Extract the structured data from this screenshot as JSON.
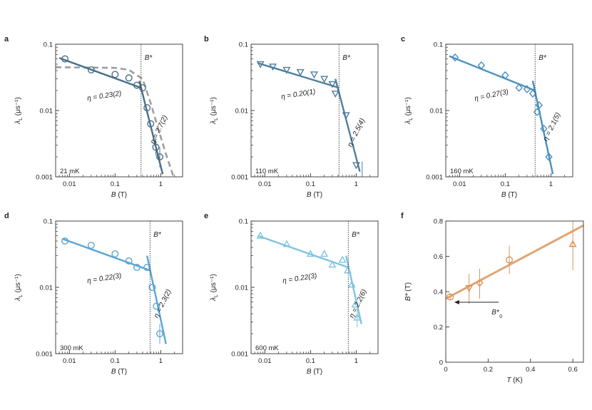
{
  "figure": {
    "panel_letters": [
      "a",
      "b",
      "c",
      "d",
      "e",
      "f"
    ]
  },
  "colors": {
    "a": "#4a6f88",
    "b": "#4f7e9c",
    "c": "#4a90bf",
    "d": "#5aa6d2",
    "e": "#7fc3df",
    "f": "#d9955a",
    "fit_dash": "#9e9e9e",
    "axis": "#333333"
  },
  "chart_data": [
    {
      "panel": "a",
      "type": "scatter",
      "marker": "circle",
      "temperature": "21 mK",
      "xlabel_var": "B",
      "xlabel_unit": " (T)",
      "ylabel_var": "λ",
      "ylabel_sub": "L",
      "ylabel_unit": " (μs⁻¹)",
      "xscale": "log",
      "yscale": "log",
      "xlim": [
        0.005,
        3
      ],
      "ylim": [
        0.001,
        0.1
      ],
      "xticks": [
        0.01,
        0.1,
        1
      ],
      "xtick_labels": [
        "0.01",
        "0.1",
        "1"
      ],
      "yticks": [
        0.001,
        0.01,
        0.1
      ],
      "ytick_labels": [
        "0.001",
        "0.01",
        "0.1"
      ],
      "bstar_label": "B*",
      "bstar_value": 0.37,
      "points": [
        {
          "x": 0.008,
          "y": 0.06
        },
        {
          "x": 0.03,
          "y": 0.041
        },
        {
          "x": 0.1,
          "y": 0.035
        },
        {
          "x": 0.2,
          "y": 0.031
        },
        {
          "x": 0.3,
          "y": 0.024
        },
        {
          "x": 0.4,
          "y": 0.022
        },
        {
          "x": 0.5,
          "y": 0.011
        },
        {
          "x": 0.6,
          "y": 0.0063
        },
        {
          "x": 0.78,
          "y": 0.0028,
          "err": [
            0.0021,
            0.0038
          ]
        },
        {
          "x": 0.95,
          "y": 0.002,
          "err": [
            0.0014,
            0.0028
          ]
        }
      ],
      "fit_low": {
        "x": [
          0.006,
          0.37
        ],
        "y": [
          0.062,
          0.022
        ]
      },
      "fit_high": {
        "x": [
          0.34,
          1.1
        ],
        "y": [
          0.028,
          0.0011
        ]
      },
      "dashed": {
        "x": [
          0.005,
          0.1,
          0.2,
          0.4,
          0.6,
          0.9,
          1.3,
          2.0
        ],
        "y": [
          0.045,
          0.044,
          0.041,
          0.03,
          0.013,
          0.005,
          0.0022,
          0.0009
        ]
      },
      "ann_low": {
        "text": "η = 0.23(2)",
        "x": 0.14,
        "y": 0.017,
        "rot": -9
      },
      "ann_high": {
        "text": "η = 2.7(2)",
        "x": 1.0,
        "y": 0.005,
        "rot": -64
      }
    },
    {
      "panel": "b",
      "type": "scatter",
      "marker": "triangle-down",
      "temperature": "110 mK",
      "xlabel_var": "B",
      "xlabel_unit": " (T)",
      "ylabel_var": "λ",
      "ylabel_sub": "L",
      "ylabel_unit": " (μs⁻¹)",
      "xscale": "log",
      "yscale": "log",
      "xlim": [
        0.005,
        3
      ],
      "ylim": [
        0.001,
        0.1
      ],
      "xticks": [
        0.01,
        0.1,
        1
      ],
      "xtick_labels": [
        "0.01",
        "0.1",
        "1"
      ],
      "yticks": [
        0.001,
        0.01,
        0.1
      ],
      "ytick_labels": [
        "0.001",
        "0.01",
        "0.1"
      ],
      "bstar_label": "B*",
      "bstar_value": 0.42,
      "points": [
        {
          "x": 0.008,
          "y": 0.05
        },
        {
          "x": 0.015,
          "y": 0.046
        },
        {
          "x": 0.03,
          "y": 0.041
        },
        {
          "x": 0.06,
          "y": 0.038
        },
        {
          "x": 0.12,
          "y": 0.035
        },
        {
          "x": 0.2,
          "y": 0.03
        },
        {
          "x": 0.3,
          "y": 0.025
        },
        {
          "x": 0.35,
          "y": 0.018
        },
        {
          "x": 0.6,
          "y": 0.0085
        },
        {
          "x": 1.0,
          "y": 0.0015
        },
        {
          "x": 1.35,
          "y": 0.0009,
          "err": [
            0.0006,
            0.0017
          ]
        }
      ],
      "fit_low": {
        "x": [
          0.007,
          0.42
        ],
        "y": [
          0.052,
          0.022
        ]
      },
      "fit_high": {
        "x": [
          0.35,
          1.2
        ],
        "y": [
          0.03,
          0.0012
        ]
      },
      "ann_low": {
        "text": "η = 0.20(1)",
        "x": 0.13,
        "y": 0.018,
        "rot": -9
      },
      "ann_high": {
        "text": "η = 2.5(4)",
        "x": 1.1,
        "y": 0.0045,
        "rot": -64
      }
    },
    {
      "panel": "c",
      "type": "scatter",
      "marker": "diamond",
      "temperature": "160 mK",
      "xlabel_var": "B",
      "xlabel_unit": " (T)",
      "ylabel_var": "λ",
      "ylabel_sub": "L",
      "ylabel_unit": " (μs⁻¹)",
      "xscale": "log",
      "yscale": "log",
      "xlim": [
        0.005,
        3
      ],
      "ylim": [
        0.001,
        0.1
      ],
      "xticks": [
        0.01,
        0.1,
        1
      ],
      "xtick_labels": [
        "0.01",
        "0.1",
        "1"
      ],
      "yticks": [
        0.001,
        0.01,
        0.1
      ],
      "ytick_labels": [
        "0.001",
        "0.01",
        "0.1"
      ],
      "bstar_label": "B*",
      "bstar_value": 0.45,
      "points": [
        {
          "x": 0.008,
          "y": 0.063
        },
        {
          "x": 0.03,
          "y": 0.048
        },
        {
          "x": 0.1,
          "y": 0.034
        },
        {
          "x": 0.2,
          "y": 0.022
        },
        {
          "x": 0.3,
          "y": 0.021
        },
        {
          "x": 0.4,
          "y": 0.018
        },
        {
          "x": 0.5,
          "y": 0.0095
        },
        {
          "x": 0.55,
          "y": 0.012
        },
        {
          "x": 0.7,
          "y": 0.0053
        },
        {
          "x": 0.9,
          "y": 0.002
        }
      ],
      "fit_low": {
        "x": [
          0.006,
          0.45
        ],
        "y": [
          0.066,
          0.02
        ]
      },
      "fit_high": {
        "x": [
          0.4,
          1.1
        ],
        "y": [
          0.028,
          0.0011
        ]
      },
      "ann_low": {
        "text": "η = 0.27(3)",
        "x": 0.12,
        "y": 0.018,
        "rot": -12
      },
      "ann_high": {
        "text": "η = 2.1(5)",
        "x": 1.15,
        "y": 0.0055,
        "rot": -64
      }
    },
    {
      "panel": "d",
      "type": "scatter",
      "marker": "circle",
      "temperature": "300 mK",
      "xlabel_var": "B",
      "xlabel_unit": " (T)",
      "ylabel_var": "λ",
      "ylabel_sub": "L",
      "ylabel_unit": " (μs⁻¹)",
      "xscale": "log",
      "yscale": "log",
      "xlim": [
        0.005,
        3
      ],
      "ylim": [
        0.001,
        0.1
      ],
      "xticks": [
        0.01,
        0.1,
        1
      ],
      "xtick_labels": [
        "0.01",
        "0.1",
        "1"
      ],
      "yticks": [
        0.001,
        0.01,
        0.1
      ],
      "ytick_labels": [
        "0.001",
        "0.01",
        "0.1"
      ],
      "bstar_label": "B*",
      "bstar_value": 0.58,
      "points": [
        {
          "x": 0.008,
          "y": 0.05
        },
        {
          "x": 0.03,
          "y": 0.043
        },
        {
          "x": 0.1,
          "y": 0.032
        },
        {
          "x": 0.2,
          "y": 0.025
        },
        {
          "x": 0.3,
          "y": 0.02
        },
        {
          "x": 0.5,
          "y": 0.02
        },
        {
          "x": 0.65,
          "y": 0.01
        },
        {
          "x": 0.8,
          "y": 0.0052
        },
        {
          "x": 0.95,
          "y": 0.002,
          "err": [
            0.0014,
            0.0028
          ]
        }
      ],
      "fit_low": {
        "x": [
          0.007,
          0.58
        ],
        "y": [
          0.054,
          0.018
        ]
      },
      "fit_high": {
        "x": [
          0.5,
          1.3
        ],
        "y": [
          0.03,
          0.0014
        ]
      },
      "ann_low": {
        "text": "η = 0.22(3)",
        "x": 0.14,
        "y": 0.014,
        "rot": -9
      },
      "ann_high": {
        "text": "η = 2.3(2)",
        "x": 1.2,
        "y": 0.0055,
        "rot": -64
      }
    },
    {
      "panel": "e",
      "type": "scatter",
      "marker": "triangle-up",
      "temperature": "600 mK",
      "xlabel_var": "B",
      "xlabel_unit": " (T)",
      "ylabel_var": "λ",
      "ylabel_sub": "L",
      "ylabel_unit": " (μs⁻¹)",
      "xscale": "log",
      "yscale": "log",
      "xlim": [
        0.005,
        3
      ],
      "ylim": [
        0.001,
        0.1
      ],
      "xticks": [
        0.01,
        0.1,
        1
      ],
      "xtick_labels": [
        "0.01",
        "0.1",
        "1"
      ],
      "yticks": [
        0.001,
        0.01,
        0.1
      ],
      "ytick_labels": [
        "0.001",
        "0.01",
        "0.1"
      ],
      "bstar_label": "B*",
      "bstar_value": 0.67,
      "points": [
        {
          "x": 0.008,
          "y": 0.06
        },
        {
          "x": 0.03,
          "y": 0.045
        },
        {
          "x": 0.1,
          "y": 0.032
        },
        {
          "x": 0.2,
          "y": 0.032
        },
        {
          "x": 0.3,
          "y": 0.022
        },
        {
          "x": 0.5,
          "y": 0.026
        },
        {
          "x": 0.65,
          "y": 0.018
        },
        {
          "x": 0.8,
          "y": 0.011
        },
        {
          "x": 0.95,
          "y": 0.0055
        },
        {
          "x": 1.05,
          "y": 0.0035,
          "err": [
            0.0025,
            0.0048
          ]
        }
      ],
      "fit_low": {
        "x": [
          0.007,
          0.67
        ],
        "y": [
          0.06,
          0.02
        ]
      },
      "fit_high": {
        "x": [
          0.6,
          1.3
        ],
        "y": [
          0.03,
          0.0028
        ]
      },
      "ann_low": {
        "text": "η = 0.22(3)",
        "x": 0.14,
        "y": 0.014,
        "rot": -9
      },
      "ann_high": {
        "text": "η = 2.2(6)",
        "x": 1.2,
        "y": 0.0055,
        "rot": -64
      }
    },
    {
      "panel": "f",
      "type": "scatter",
      "xlabel_var": "T",
      "xlabel_unit": " (K)",
      "ylabel_var": "B*",
      "ylabel_sub": "",
      "ylabel_unit": " (T)",
      "xscale": "linear",
      "yscale": "linear",
      "xlim": [
        0,
        0.65
      ],
      "ylim": [
        0,
        0.8
      ],
      "xticks": [
        0,
        0.2,
        0.4,
        0.6
      ],
      "xtick_labels": [
        "0",
        "0.2",
        "0.4",
        "0.6"
      ],
      "yticks": [
        0,
        0.2,
        0.4,
        0.6,
        0.8
      ],
      "ytick_labels": [
        "0",
        "0.2",
        "0.4",
        "0.6",
        "0.8"
      ],
      "points": [
        {
          "x": 0.021,
          "y": 0.37,
          "marker": "circle",
          "err": [
            0.35,
            0.39
          ]
        },
        {
          "x": 0.11,
          "y": 0.42,
          "marker": "triangle-down",
          "err": [
            0.33,
            0.5
          ]
        },
        {
          "x": 0.16,
          "y": 0.45,
          "marker": "diamond",
          "err": [
            0.36,
            0.53
          ]
        },
        {
          "x": 0.3,
          "y": 0.58,
          "marker": "circle",
          "err": [
            0.5,
            0.66
          ]
        },
        {
          "x": 0.6,
          "y": 0.67,
          "marker": "triangle-up",
          "err": [
            0.52,
            0.82
          ]
        }
      ],
      "fit_line": {
        "x": [
          0,
          0.65
        ],
        "y": [
          0.36,
          0.775
        ]
      },
      "b0_label": "B*",
      "b0_sub": "0",
      "b0_arrow": {
        "x_from": 0.25,
        "x_to": 0.04,
        "y": 0.34
      }
    }
  ]
}
